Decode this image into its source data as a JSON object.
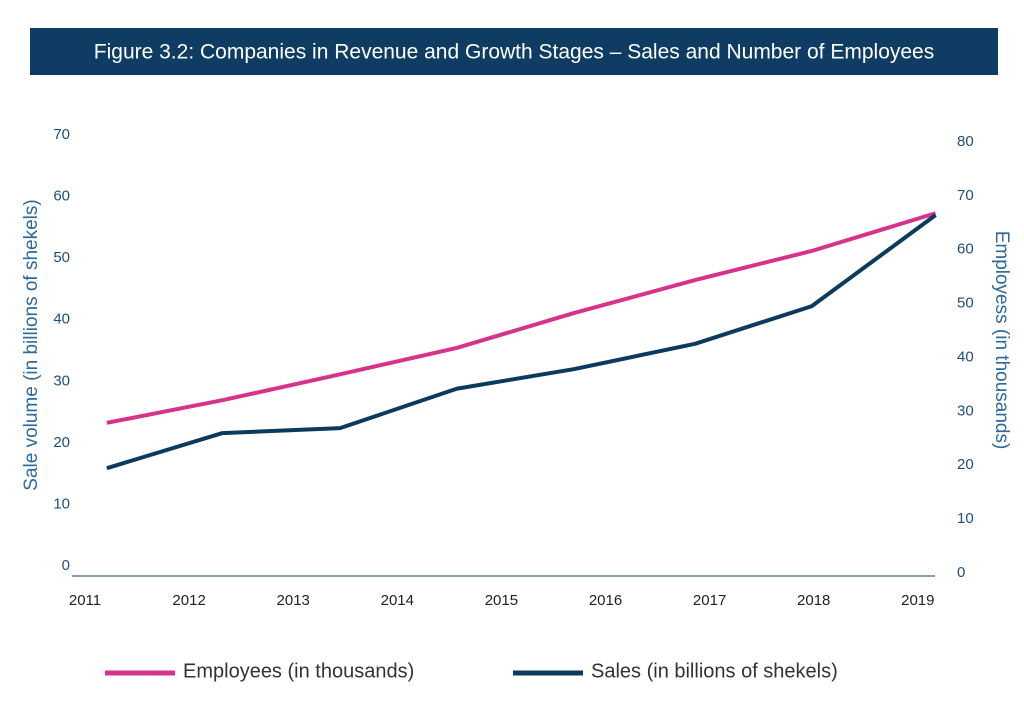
{
  "chart_data": {
    "type": "line",
    "title": "Figure 3.2: Companies in Revenue and Growth Stages – Sales and Number of Employees",
    "y_label": "Sale volume (in billions of shekels)",
    "y2_label": "Employess (in thousands)",
    "x": [
      2011.21,
      2012.32,
      2013.45,
      2014.57,
      2015.7,
      2016.86,
      2017.98,
      2019.17
    ],
    "xlim": [
      2010.875,
      2019.165
    ],
    "xticks": [
      2011,
      2012,
      2013,
      2014,
      2015,
      2016,
      2017,
      2018,
      2019
    ],
    "ylim": [
      0,
      70
    ],
    "yticks": [
      0,
      10,
      20,
      30,
      40,
      50,
      60,
      70
    ],
    "y2lim": [
      0,
      80
    ],
    "y2ticks": [
      0,
      10,
      20,
      30,
      40,
      50,
      60,
      70,
      80
    ],
    "series": [
      {
        "name": "Employees (in thousands)",
        "color": "#d6338a",
        "axis": "y2",
        "values": [
          27.5,
          31.7,
          36.5,
          41.4,
          47.9,
          54.0,
          59.4,
          66.4
        ]
      },
      {
        "name": "Sales (in billions of shekels)",
        "color": "#0b3a5f",
        "values": [
          16.7,
          22.4,
          23.2,
          29.6,
          32.8,
          36.9,
          43.0,
          57.8
        ]
      }
    ]
  }
}
